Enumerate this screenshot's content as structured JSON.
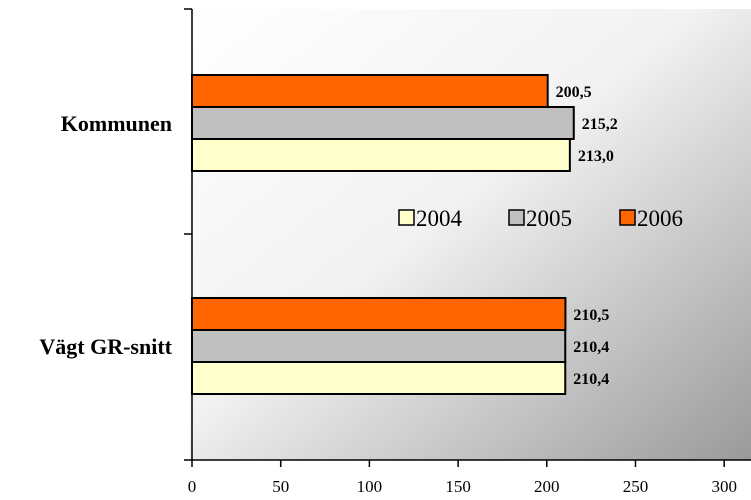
{
  "chart_data": {
    "type": "bar",
    "orientation": "horizontal",
    "categories": [
      "Kommunen",
      "Vägt GR-snitt"
    ],
    "series": [
      {
        "name": "2004",
        "values": [
          213.0,
          210.4
        ],
        "labels": [
          "213,0",
          "210,4"
        ],
        "color": "#FFFFCC"
      },
      {
        "name": "2005",
        "values": [
          215.2,
          210.4
        ],
        "labels": [
          "215,2",
          "210,4"
        ],
        "color": "#C0C0C0"
      },
      {
        "name": "2006",
        "values": [
          200.5,
          210.5
        ],
        "labels": [
          "200,5",
          "210,5"
        ],
        "color": "#FF6600"
      }
    ],
    "xlim": [
      0,
      300
    ],
    "xticks": [
      "0",
      "50",
      "100",
      "150",
      "200",
      "250",
      "300"
    ],
    "xlabel": "",
    "ylabel": "",
    "legend_position": "center-right",
    "grid": false,
    "background": "gradient white to gray"
  }
}
